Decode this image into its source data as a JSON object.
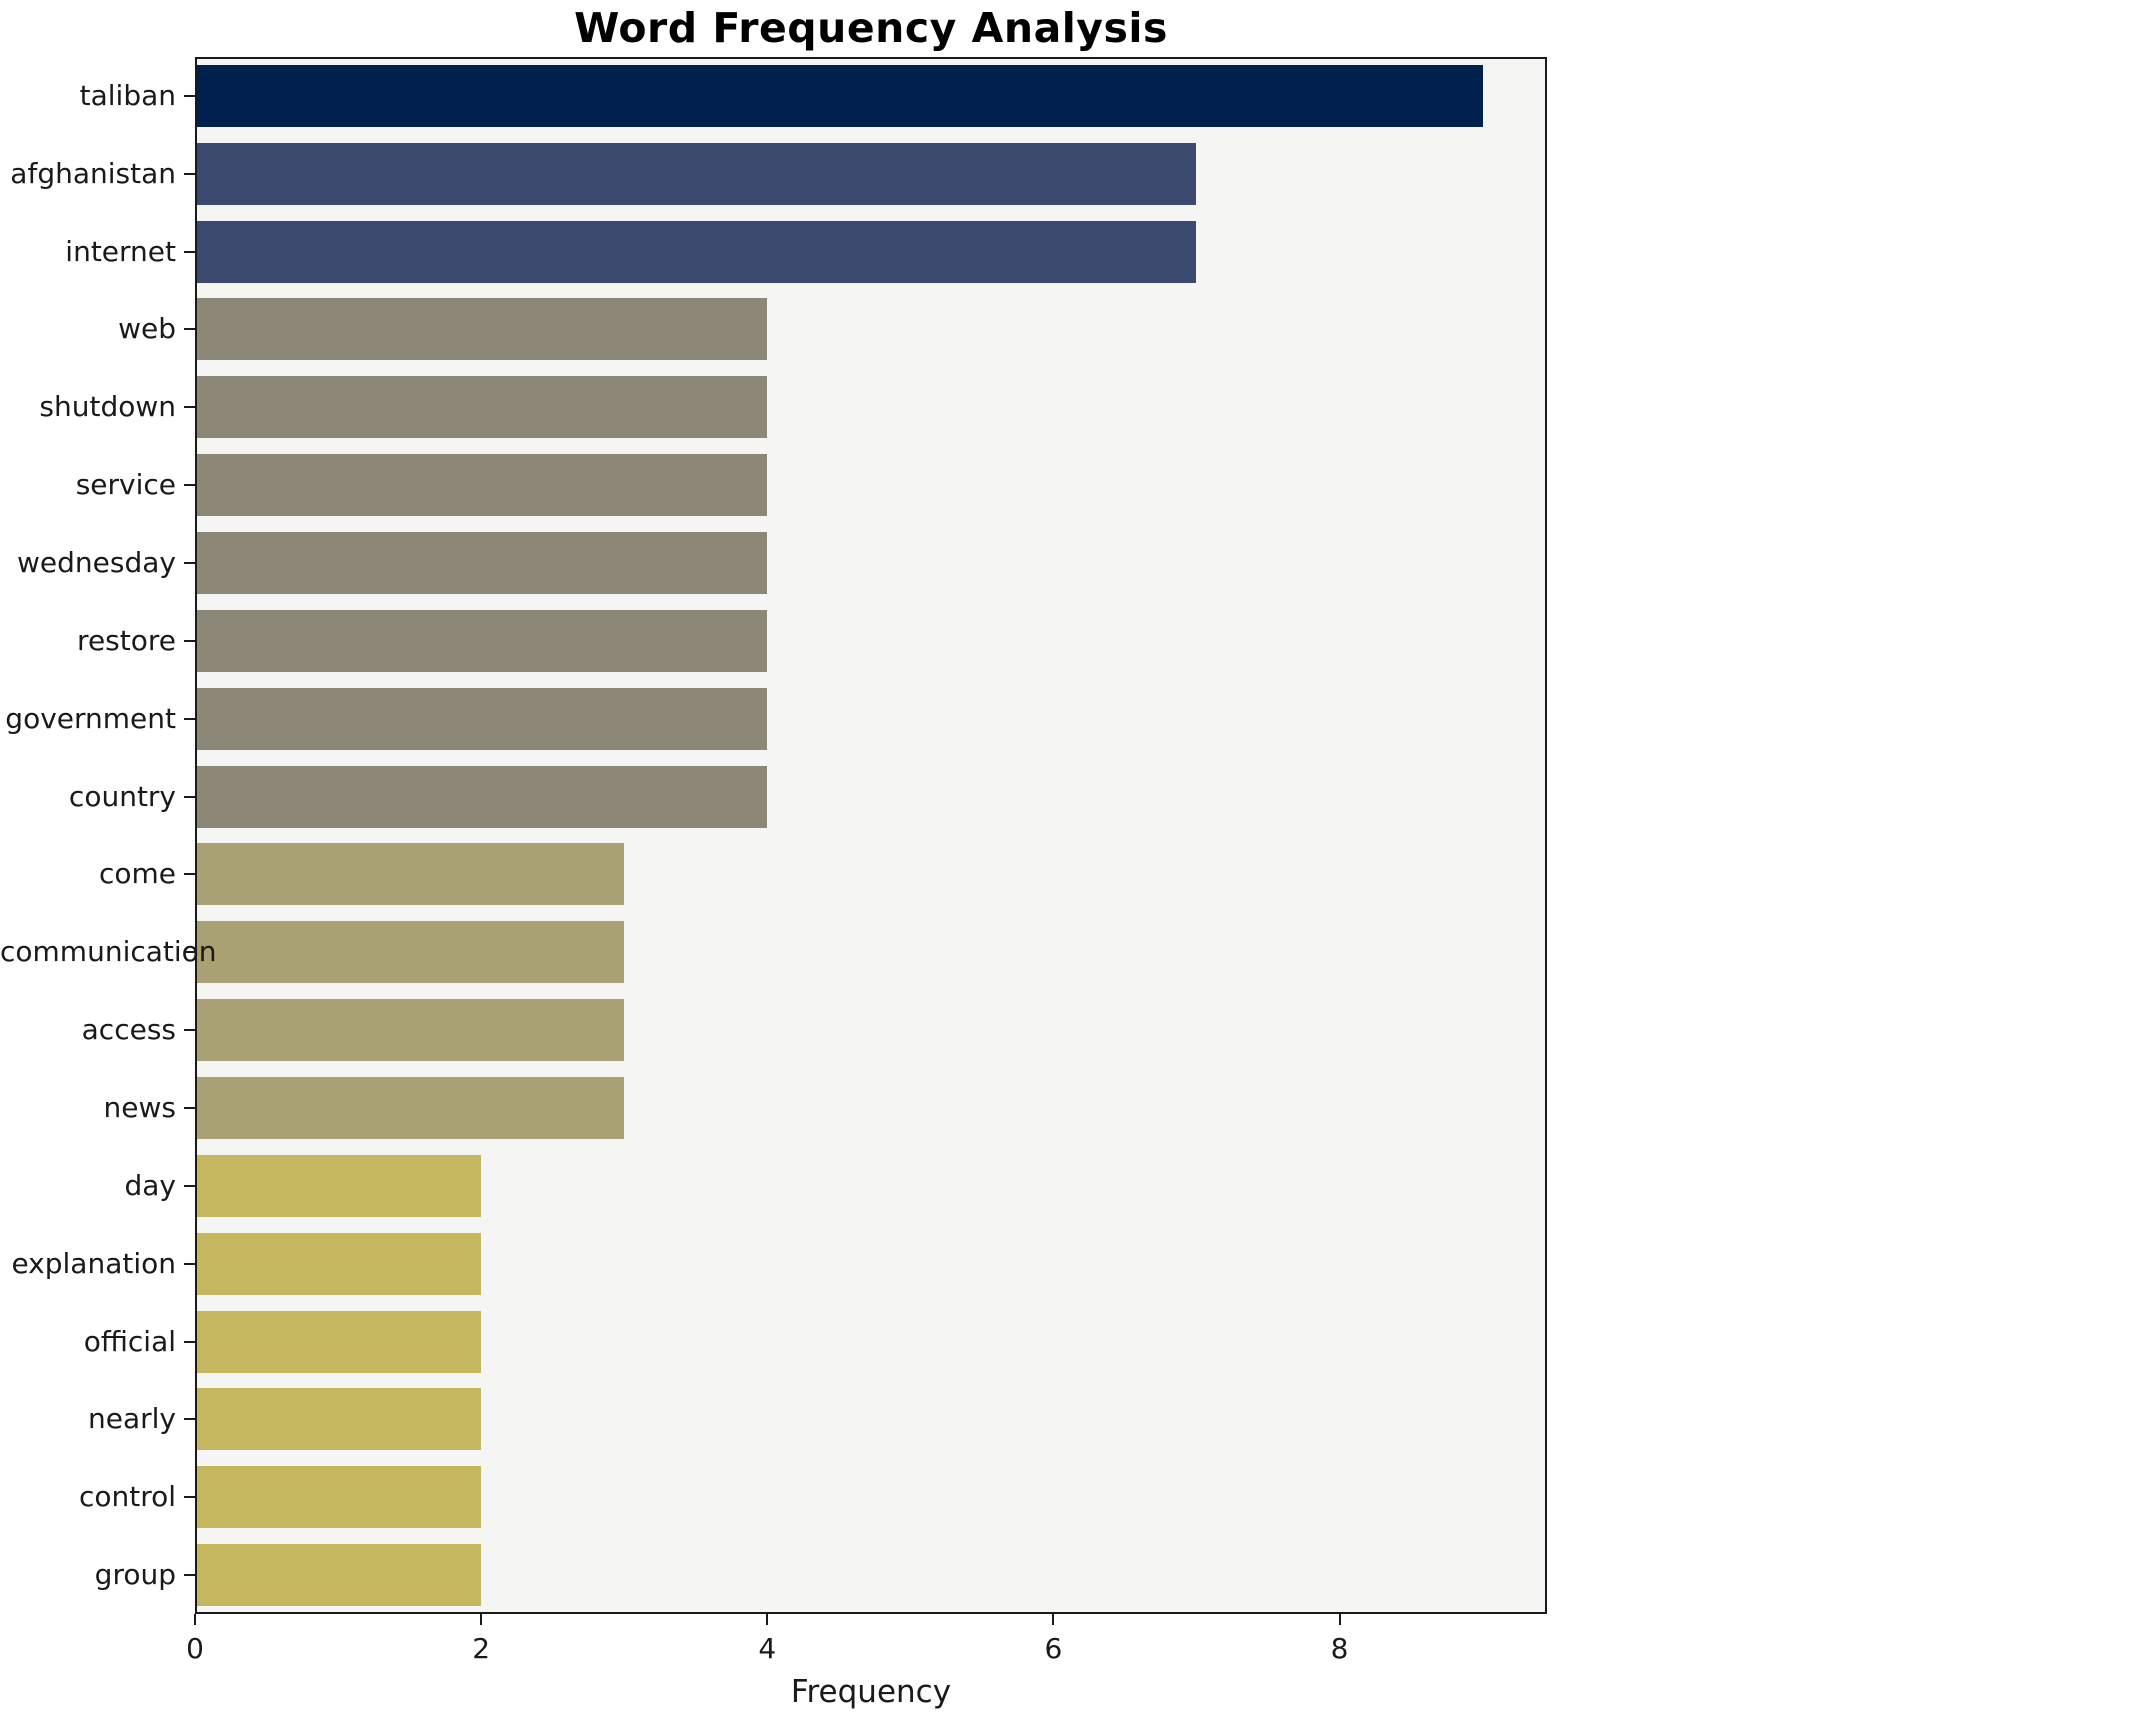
{
  "title": "Word Frequency Analysis",
  "chart_data": {
    "type": "bar",
    "orientation": "horizontal",
    "title": "Word Frequency Analysis",
    "xlabel": "Frequency",
    "ylabel": "",
    "categories": [
      "taliban",
      "afghanistan",
      "internet",
      "web",
      "shutdown",
      "service",
      "wednesday",
      "restore",
      "government",
      "country",
      "come",
      "communication",
      "access",
      "news",
      "day",
      "explanation",
      "official",
      "nearly",
      "control",
      "group"
    ],
    "values": [
      9,
      7,
      7,
      4,
      4,
      4,
      4,
      4,
      4,
      4,
      3,
      3,
      3,
      3,
      2,
      2,
      2,
      2,
      2,
      2
    ],
    "bar_colors": [
      "#00204e",
      "#3b4a6e",
      "#3b4a6e",
      "#8c8777",
      "#8c8777",
      "#8c8777",
      "#8c8777",
      "#8c8777",
      "#8c8777",
      "#8c8777",
      "#a9a074",
      "#a9a074",
      "#a9a074",
      "#a9a074",
      "#c5b75f",
      "#c5b75f",
      "#c5b75f",
      "#c5b75f",
      "#c5b75f",
      "#c5b75f"
    ],
    "xlim": [
      0,
      9.45
    ],
    "xticks": [
      "0",
      "2",
      "4",
      "6",
      "8"
    ],
    "xtick_values": [
      0,
      2,
      4,
      6,
      8
    ],
    "grid": false,
    "legend": false,
    "plot_background": "#f5f5f3",
    "figure_background": "#ffffff"
  }
}
